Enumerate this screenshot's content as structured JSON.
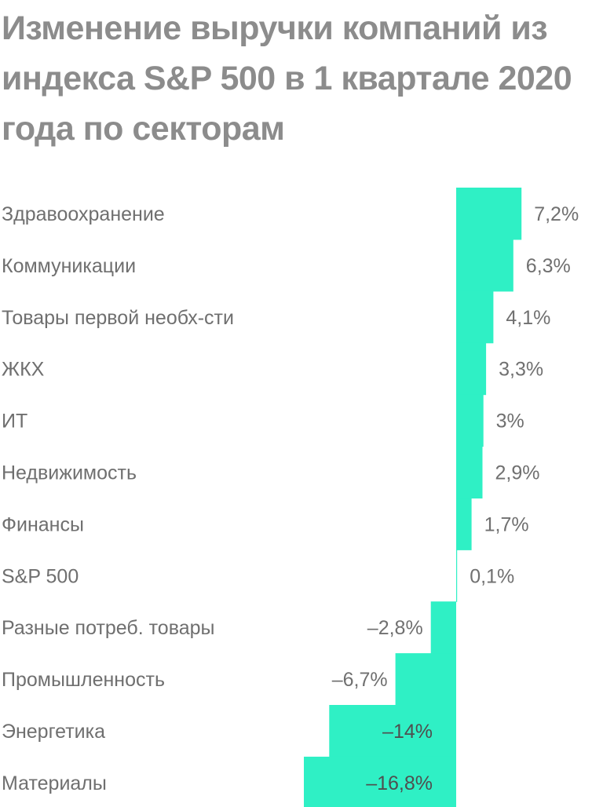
{
  "title": "Изменение выручки компаний из индекса S&P 500 в 1 квартале 2020 года по секторам",
  "colors": {
    "bar": "#2ff0c5",
    "title": "#8c8c8c",
    "category_label": "#6f6f6f",
    "value_label": "#707070"
  },
  "chart_data": {
    "type": "bar",
    "orientation": "horizontal",
    "title": "Изменение выручки компаний из индекса S&P 500 в 1 квартале 2020 года по секторам",
    "xlabel": "",
    "ylabel": "",
    "unit": "%",
    "grid": false,
    "legend": "none",
    "xlim": [
      -16.8,
      7.2
    ],
    "categories": [
      "Здравоохранение",
      "Коммуникации",
      "Товары первой необх-сти",
      "ЖКХ",
      "ИТ",
      "Недвижимость",
      "Финансы",
      "S&P 500",
      "Разные потреб. товары",
      "Промышленность",
      "Энергетика",
      "Материалы"
    ],
    "values": [
      7.2,
      6.3,
      4.1,
      3.3,
      3,
      2.9,
      1.7,
      0.1,
      -2.8,
      -6.7,
      -14,
      -16.8
    ],
    "value_labels": [
      "7,2%",
      "6,3%",
      "4,1%",
      "3,3%",
      "3%",
      "2,9%",
      "1,7%",
      "0,1%",
      "–2,8%",
      "–6,7%",
      "–14%",
      "–16,8%"
    ]
  }
}
